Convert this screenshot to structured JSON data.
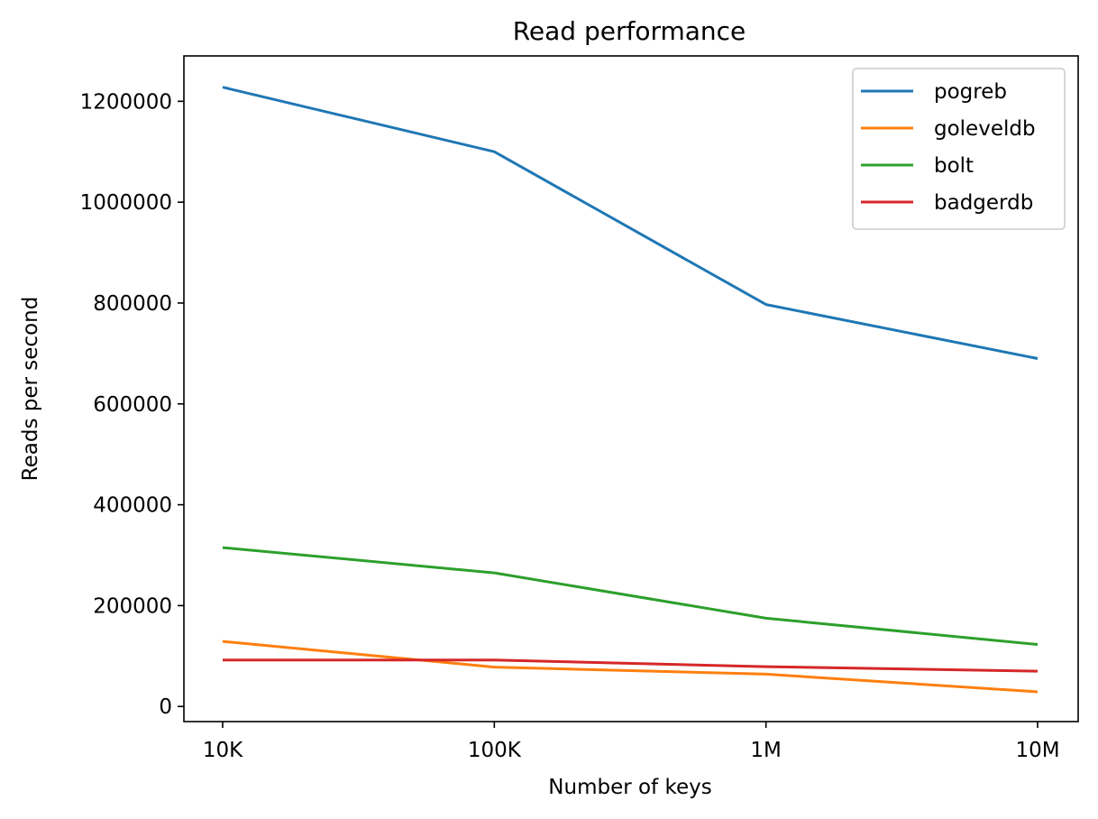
{
  "chart_data": {
    "type": "line",
    "title": "Read performance",
    "xlabel": "Number of keys",
    "ylabel": "Reads per second",
    "categories": [
      "10K",
      "100K",
      "1M",
      "10M"
    ],
    "ylim": [
      -30000,
      1290000
    ],
    "yticks": [
      0,
      200000,
      400000,
      600000,
      800000,
      1000000,
      1200000
    ],
    "ytick_labels": [
      "0",
      "200000",
      "400000",
      "600000",
      "800000",
      "1000000",
      "1200000"
    ],
    "grid": false,
    "legend_position": "top-right",
    "series": [
      {
        "name": "pogreb",
        "color": "#1f77b4",
        "values": [
          1228000,
          1100000,
          797000,
          690000
        ]
      },
      {
        "name": "goleveldb",
        "color": "#ff7f0e",
        "values": [
          129000,
          78000,
          64000,
          29000
        ]
      },
      {
        "name": "bolt",
        "color": "#2ca02c",
        "values": [
          315000,
          265000,
          175000,
          123000
        ]
      },
      {
        "name": "badgerdb",
        "color": "#d62728",
        "values": [
          92000,
          92000,
          79000,
          70000
        ]
      }
    ]
  }
}
